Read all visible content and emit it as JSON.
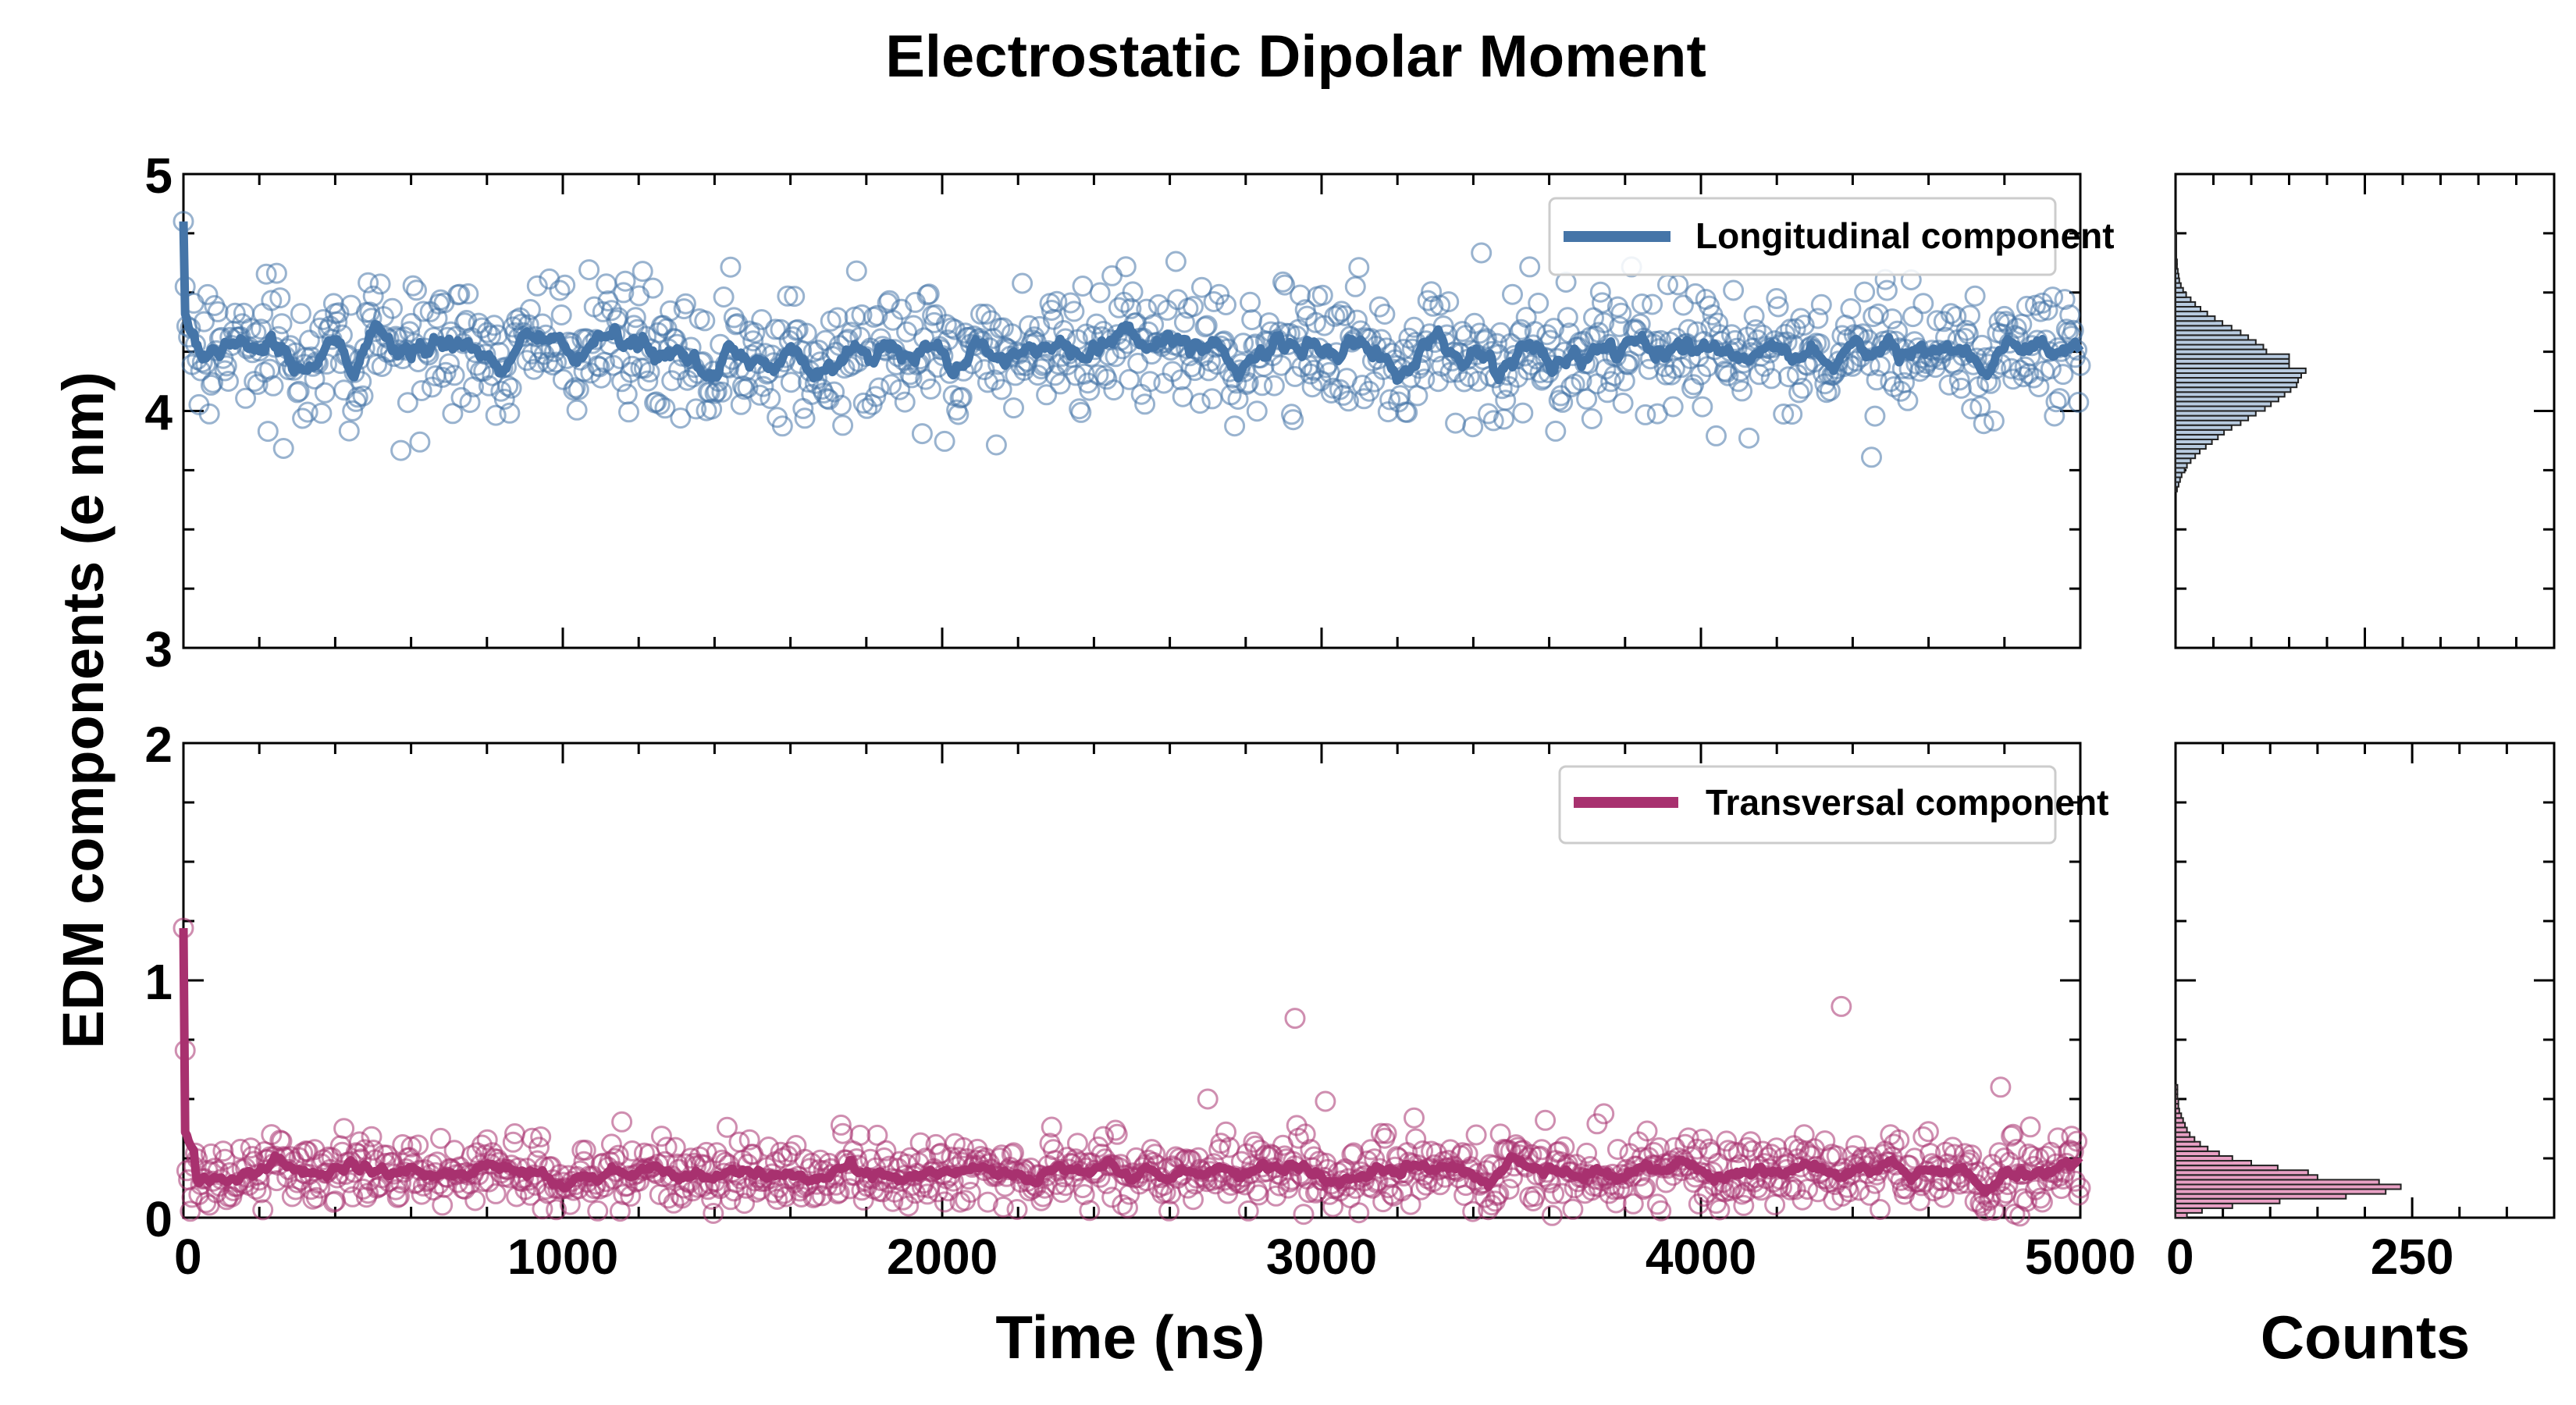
{
  "figure": {
    "title": "Electrostatic Dipolar Moment",
    "ylabel": "EDM components (e nm)",
    "xlabel": "Time (ns)",
    "hist_xlabel": "Counts"
  },
  "colors": {
    "longitudinal": "#4575a8",
    "transversal": "#a8316f",
    "hist_long_fill": "#b8cbe0",
    "hist_trans_fill": "#e8a0c4"
  },
  "chart_data": [
    {
      "type": "scatter",
      "name": "longitudinal-panel",
      "legend": "Longitudinal component",
      "xlabel": "Time (ns)",
      "xlim": [
        0,
        5000
      ],
      "ylim": [
        3,
        5
      ],
      "xticks": [
        0,
        1000,
        2000,
        3000,
        4000,
        5000
      ],
      "xtick_labels": [
        "0",
        "1000",
        "2000",
        "3000",
        "4000",
        "5000"
      ],
      "yticks": [
        3,
        4,
        5
      ],
      "ytick_labels": [
        "3",
        "4",
        "5"
      ],
      "n_points": 1100,
      "mean": 4.25,
      "std": 0.17,
      "initial_value": 4.8,
      "outliers": [],
      "running_mean": true
    },
    {
      "type": "scatter",
      "name": "transversal-panel",
      "legend": "Transversal component",
      "xlabel": "Time (ns)",
      "xlim": [
        0,
        5000
      ],
      "ylim": [
        0,
        2
      ],
      "xticks": [
        0,
        1000,
        2000,
        3000,
        4000,
        5000
      ],
      "xtick_labels": [
        "0",
        "1000",
        "2000",
        "3000",
        "4000",
        "5000"
      ],
      "yticks": [
        0,
        1,
        2
      ],
      "ytick_labels": [
        "0",
        "1",
        "2"
      ],
      "n_points": 1100,
      "mean": 0.19,
      "std": 0.09,
      "initial_value": 1.22,
      "outliers": [
        [
          2930,
          0.84
        ],
        [
          4370,
          0.89
        ],
        [
          4790,
          0.55
        ],
        [
          2700,
          0.5
        ],
        [
          3010,
          0.49
        ]
      ],
      "running_mean": true
    },
    {
      "type": "bar",
      "name": "longitudinal-histogram",
      "orientation": "horizontal",
      "xlabel": "",
      "xlim": [
        0,
        500
      ],
      "ylim": [
        3,
        5
      ],
      "bins": [
        3.66,
        3.68,
        3.7,
        3.72,
        3.74,
        3.76,
        3.78,
        3.8,
        3.82,
        3.84,
        3.86,
        3.88,
        3.9,
        3.92,
        3.94,
        3.96,
        3.98,
        4.0,
        4.02,
        4.04,
        4.06,
        4.08,
        4.1,
        4.12,
        4.14,
        4.16,
        4.18,
        4.2,
        4.22,
        4.24,
        4.26,
        4.28,
        4.3,
        4.32,
        4.34,
        4.36,
        4.38,
        4.4,
        4.42,
        4.44,
        4.46,
        4.48,
        4.5,
        4.52,
        4.54,
        4.56,
        4.58,
        4.6,
        4.62,
        4.64,
        4.66,
        4.68,
        4.7,
        4.72,
        4.74
      ],
      "counts": [
        2,
        4,
        6,
        8,
        12,
        15,
        20,
        26,
        32,
        40,
        48,
        56,
        64,
        74,
        86,
        96,
        106,
        118,
        126,
        136,
        144,
        152,
        160,
        162,
        166,
        172,
        150,
        150,
        150,
        120,
        116,
        106,
        96,
        86,
        74,
        62,
        52,
        42,
        33,
        26,
        20,
        14,
        10,
        7,
        5,
        4,
        3,
        2,
        2,
        1,
        1,
        1,
        1,
        1,
        1
      ]
    },
    {
      "type": "bar",
      "name": "transversal-histogram",
      "orientation": "horizontal",
      "xlabel": "Counts",
      "xlim": [
        0,
        400
      ],
      "ylim": [
        0,
        2
      ],
      "xticks": [
        0,
        250
      ],
      "xtick_labels": [
        "0",
        "250"
      ],
      "bins": [
        0.0,
        0.02,
        0.04,
        0.06,
        0.08,
        0.1,
        0.12,
        0.14,
        0.16,
        0.18,
        0.2,
        0.22,
        0.24,
        0.26,
        0.28,
        0.3,
        0.32,
        0.34,
        0.36,
        0.38,
        0.4,
        0.42,
        0.44,
        0.46,
        0.48,
        0.5,
        0.52,
        0.54
      ],
      "counts": [
        12,
        28,
        60,
        110,
        180,
        222,
        238,
        215,
        150,
        140,
        108,
        80,
        60,
        46,
        34,
        26,
        20,
        15,
        12,
        10,
        8,
        6,
        4,
        3,
        3,
        2,
        2,
        2
      ]
    }
  ]
}
